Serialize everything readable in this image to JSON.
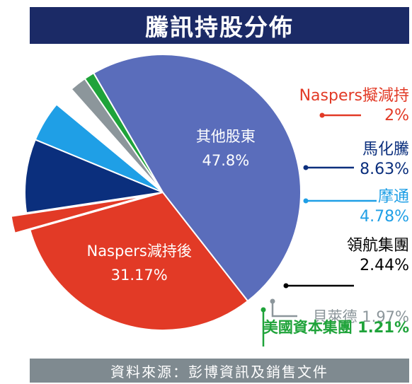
{
  "title": "騰訊持股分佈",
  "source": "資料來源：彭博資訊及銷售文件",
  "chart_data": {
    "type": "pie",
    "title": "騰訊持股分佈",
    "slices": [
      {
        "label": "Naspers減持後",
        "value": 31.17,
        "value_text": "31.17%",
        "color": "#e23a26",
        "label_pos": "inside"
      },
      {
        "label": "Naspers擬減持",
        "value": 2,
        "value_text": "2%",
        "color": "#e23a26",
        "label_pos": "outside",
        "exploded": true
      },
      {
        "label": "馬化騰",
        "value": 8.63,
        "value_text": "8.63%",
        "color": "#0b2f7d",
        "label_pos": "outside"
      },
      {
        "label": "摩通",
        "value": 4.78,
        "value_text": "4.78%",
        "color": "#1f9fe6",
        "label_pos": "outside"
      },
      {
        "label": "領航集團",
        "value": 2.44,
        "value_text": "2.44%",
        "color": "#ffffff",
        "label_pos": "outside"
      },
      {
        "label": "貝萊德",
        "value": 1.97,
        "value_text": "1.97%",
        "color": "#8c969b",
        "label_pos": "outside"
      },
      {
        "label": "美國資本集團",
        "value": 1.21,
        "value_text": "1.21%",
        "color": "#1fa33a",
        "label_pos": "outside"
      },
      {
        "label": "其他股東",
        "value": 47.8,
        "value_text": "47.8%",
        "color": "#5a6dbb",
        "label_pos": "inside"
      }
    ]
  }
}
